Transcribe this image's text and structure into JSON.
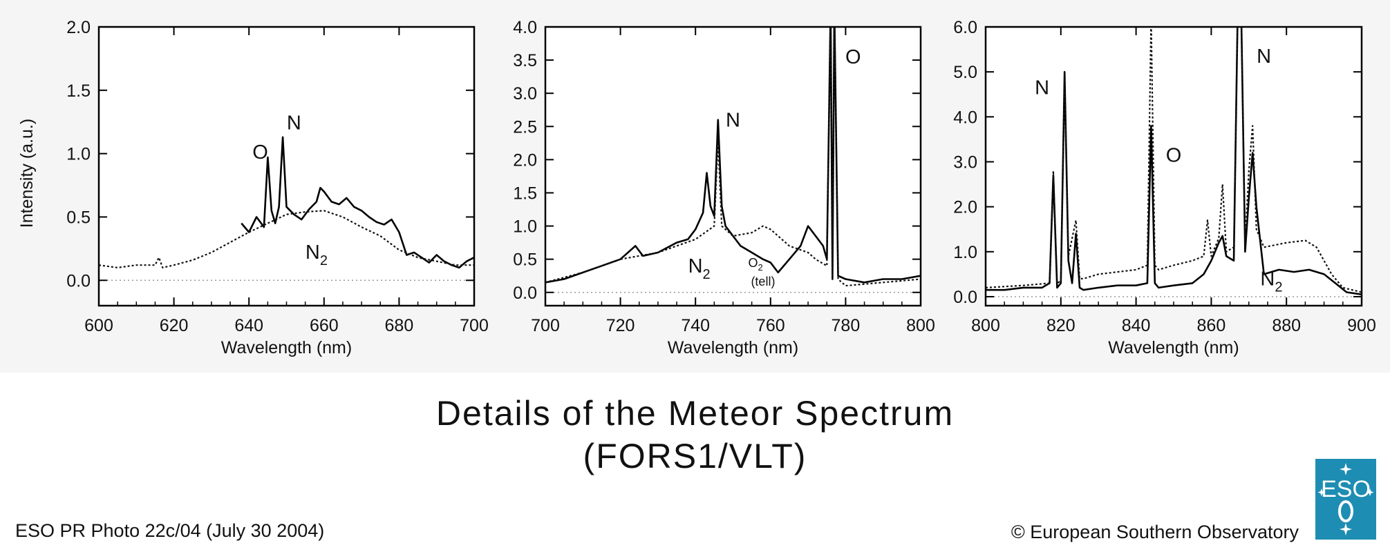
{
  "title_line1": "Details of the Meteor Spectrum",
  "title_line2": "(FORS1/VLT)",
  "photo_id": "ESO PR Photo 22c/04 (July 30 2004)",
  "copyright": "© European Southern Observatory",
  "logo_text": "ESO",
  "chart_data": [
    {
      "type": "line",
      "xlabel": "Wavelength (nm)",
      "ylabel": "Intensity (a.u.)",
      "xlim": [
        600,
        700
      ],
      "ylim": [
        -0.2,
        2.0
      ],
      "xticks": [
        600,
        620,
        640,
        660,
        680,
        700
      ],
      "yticks": [
        0.0,
        0.5,
        1.0,
        1.5,
        2.0
      ],
      "ytick_labels": [
        "0.0",
        "0.5",
        "1.0",
        "1.5",
        "2.0"
      ],
      "annotations": [
        {
          "label": "O",
          "x": 643,
          "y": 0.96
        },
        {
          "label": "N",
          "x": 652,
          "y": 1.19
        },
        {
          "label": "N",
          "sub": "2",
          "x": 658,
          "y": 0.17
        }
      ],
      "series": [
        {
          "style": "solid",
          "x": [
            638,
            640,
            642,
            644,
            645,
            646,
            647,
            648,
            649,
            650,
            652,
            654,
            656,
            658,
            659,
            660,
            662,
            664,
            666,
            668,
            670,
            672,
            674,
            676,
            678,
            680,
            682,
            684,
            686,
            688,
            690,
            692,
            694,
            696,
            698,
            700
          ],
          "y": [
            0.45,
            0.38,
            0.5,
            0.42,
            0.97,
            0.55,
            0.45,
            0.58,
            1.13,
            0.58,
            0.52,
            0.48,
            0.56,
            0.62,
            0.73,
            0.7,
            0.62,
            0.6,
            0.65,
            0.58,
            0.55,
            0.5,
            0.46,
            0.44,
            0.48,
            0.38,
            0.2,
            0.22,
            0.18,
            0.14,
            0.2,
            0.15,
            0.12,
            0.1,
            0.15,
            0.18
          ]
        },
        {
          "style": "dotted",
          "x": [
            600,
            605,
            610,
            615,
            616,
            617,
            620,
            625,
            630,
            635,
            640,
            645,
            650,
            655,
            660,
            665,
            670,
            675,
            680,
            685,
            690,
            695,
            700
          ],
          "y": [
            0.12,
            0.1,
            0.12,
            0.12,
            0.18,
            0.1,
            0.12,
            0.16,
            0.22,
            0.3,
            0.38,
            0.45,
            0.52,
            0.54,
            0.55,
            0.5,
            0.42,
            0.35,
            0.24,
            0.18,
            0.15,
            0.12,
            0.12
          ]
        },
        {
          "style": "baseline",
          "x": [
            600,
            700
          ],
          "y": [
            0.0,
            0.0
          ]
        }
      ]
    },
    {
      "type": "line",
      "xlabel": "Wavelength (nm)",
      "ylabel": "",
      "xlim": [
        700,
        800
      ],
      "ylim": [
        -0.2,
        4.0
      ],
      "xticks": [
        700,
        720,
        740,
        760,
        780,
        800
      ],
      "yticks": [
        0.0,
        0.5,
        1.0,
        1.5,
        2.0,
        2.5,
        3.0,
        3.5,
        4.0
      ],
      "ytick_labels": [
        "0.0",
        "0.5",
        "1.0",
        "1.5",
        "2.0",
        "2.5",
        "3.0",
        "3.5",
        "4.0"
      ],
      "annotations": [
        {
          "label": "N",
          "x": 750,
          "y": 2.5
        },
        {
          "label": "O",
          "x": 782,
          "y": 3.45
        },
        {
          "label": "N",
          "sub": "2",
          "x": 741,
          "y": 0.3
        },
        {
          "label": "O",
          "sub": "2",
          "x": 756,
          "y": 0.38,
          "small": true
        },
        {
          "label": "(tell)",
          "x": 758,
          "y": 0.1,
          "small": true
        }
      ],
      "series": [
        {
          "style": "solid",
          "x": [
            700,
            705,
            710,
            715,
            720,
            724,
            726,
            730,
            735,
            738,
            740,
            742,
            743,
            744,
            745,
            746,
            747,
            748,
            750,
            752,
            755,
            758,
            760,
            762,
            765,
            768,
            770,
            772,
            774,
            775,
            776,
            776.5,
            777,
            778,
            780,
            785,
            790,
            795,
            800
          ],
          "y": [
            0.15,
            0.2,
            0.3,
            0.4,
            0.5,
            0.7,
            0.55,
            0.6,
            0.75,
            0.8,
            0.95,
            1.2,
            1.8,
            1.3,
            1.15,
            2.6,
            1.3,
            1.0,
            0.85,
            0.7,
            0.6,
            0.5,
            0.45,
            0.3,
            0.5,
            0.7,
            1.0,
            0.85,
            0.7,
            0.5,
            4.3,
            0.2,
            4.3,
            0.25,
            0.2,
            0.15,
            0.2,
            0.2,
            0.25
          ]
        },
        {
          "style": "dotted",
          "x": [
            700,
            710,
            720,
            730,
            740,
            745,
            746,
            747,
            750,
            755,
            758,
            760,
            765,
            770,
            772,
            775,
            776,
            776.5,
            777,
            778,
            780,
            790,
            800
          ],
          "y": [
            0.15,
            0.3,
            0.5,
            0.6,
            0.8,
            1.0,
            2.3,
            1.0,
            0.85,
            0.9,
            1.0,
            0.95,
            0.7,
            0.6,
            0.5,
            0.4,
            4.3,
            0.2,
            4.3,
            0.2,
            0.1,
            0.15,
            0.2
          ]
        },
        {
          "style": "baseline",
          "x": [
            700,
            800
          ],
          "y": [
            0.0,
            0.0
          ]
        }
      ]
    },
    {
      "type": "line",
      "xlabel": "Wavelength (nm)",
      "ylabel": "",
      "xlim": [
        800,
        900
      ],
      "ylim": [
        -0.2,
        6.0
      ],
      "xticks": [
        800,
        820,
        840,
        860,
        880,
        900
      ],
      "yticks": [
        0.0,
        1.0,
        2.0,
        3.0,
        4.0,
        5.0,
        6.0
      ],
      "ytick_labels": [
        "0.0",
        "1.0",
        "2.0",
        "3.0",
        "4.0",
        "5.0",
        "6.0"
      ],
      "annotations": [
        {
          "label": "N",
          "x": 815,
          "y": 4.5
        },
        {
          "label": "O",
          "x": 850,
          "y": 3.0
        },
        {
          "label": "N",
          "x": 874,
          "y": 5.2
        },
        {
          "label": "N",
          "sub": "2",
          "x": 876,
          "y": 0.25
        }
      ],
      "series": [
        {
          "style": "solid",
          "x": [
            800,
            805,
            810,
            815,
            817,
            818,
            819,
            820,
            821,
            822,
            823,
            824,
            825,
            826,
            830,
            835,
            840,
            843,
            844,
            845,
            846,
            850,
            855,
            858,
            860,
            862,
            863,
            864,
            866,
            867,
            868,
            869,
            870,
            871,
            872,
            874,
            878,
            882,
            886,
            890,
            893,
            896,
            900
          ],
          "y": [
            0.15,
            0.15,
            0.2,
            0.2,
            0.3,
            2.7,
            0.2,
            0.3,
            5.0,
            0.8,
            0.3,
            1.4,
            0.2,
            0.15,
            0.2,
            0.25,
            0.25,
            0.3,
            3.8,
            0.3,
            0.2,
            0.25,
            0.3,
            0.5,
            0.8,
            1.2,
            1.35,
            0.9,
            0.8,
            6.2,
            6.2,
            1.0,
            2.2,
            3.2,
            2.0,
            0.5,
            0.6,
            0.55,
            0.6,
            0.5,
            0.3,
            0.1,
            0.05
          ]
        },
        {
          "style": "dotted",
          "x": [
            800,
            810,
            817,
            818,
            819,
            820,
            821,
            822,
            824,
            825,
            826,
            830,
            840,
            843,
            844,
            845,
            846,
            850,
            855,
            858,
            859,
            860,
            862,
            863,
            864,
            866,
            867,
            868,
            869,
            870,
            871,
            872,
            874,
            880,
            885,
            888,
            892,
            895,
            900
          ],
          "y": [
            0.2,
            0.25,
            0.3,
            2.8,
            0.3,
            0.35,
            4.9,
            0.9,
            1.7,
            0.4,
            0.4,
            0.5,
            0.6,
            0.7,
            6.2,
            0.7,
            0.6,
            0.7,
            0.8,
            0.9,
            1.7,
            0.9,
            1.3,
            2.5,
            1.0,
            1.1,
            6.2,
            6.2,
            1.2,
            2.8,
            3.8,
            1.5,
            1.1,
            1.2,
            1.25,
            1.1,
            0.5,
            0.2,
            0.1
          ]
        },
        {
          "style": "baseline",
          "x": [
            800,
            900
          ],
          "y": [
            0.0,
            0.0
          ]
        }
      ]
    }
  ]
}
